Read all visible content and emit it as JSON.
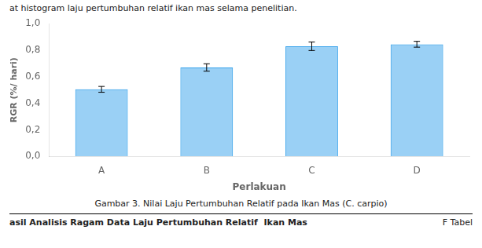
{
  "chart_data": {
    "type": "bar",
    "categories": [
      "A",
      "B",
      "C",
      "D"
    ],
    "values": [
      0.505,
      0.67,
      0.83,
      0.845
    ],
    "errors": [
      0.022,
      0.028,
      0.032,
      0.022
    ],
    "xlabel": "Perlakuan",
    "ylabel": "RGR (%/ hari)",
    "ylim": [
      0.0,
      1.0
    ],
    "yticks": [
      {
        "value": 0.0,
        "label": "0,0"
      },
      {
        "value": 0.2,
        "label": "0,2"
      },
      {
        "value": 0.4,
        "label": "0,4"
      },
      {
        "value": 0.6,
        "label": "0,6"
      },
      {
        "value": 0.8,
        "label": "0,8"
      },
      {
        "value": 1.0,
        "label": "1,0"
      }
    ],
    "grid": false,
    "annotations": [
      "at histogram laju pertumbuhan relatif ikan mas selama penelitian.",
      "Gambar 3. Nilai Laju Pertumbuhan Relatif pada Ikan Mas (C. carpio)",
      "asil Analisis Ragam Data Laju Pertumbuhan Relatif  Ikan Mas",
      "F Tabel"
    ]
  }
}
